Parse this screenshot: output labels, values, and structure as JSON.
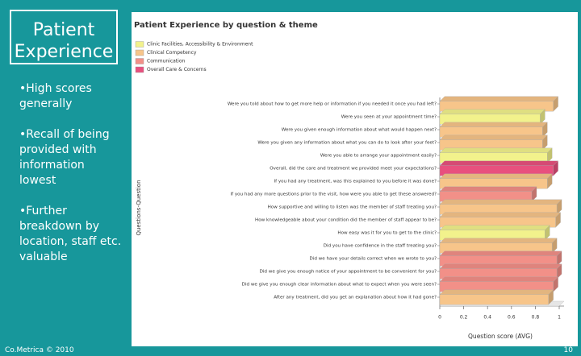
{
  "slide": {
    "title": "Patient Experience",
    "bullets": [
      "High scores generally",
      "Recall of being provided with information lowest",
      "Further breakdown by location, staff etc. valuable"
    ],
    "footer": "Co.Metrica © 2010",
    "page_number": "10"
  },
  "chart_data": {
    "type": "bar",
    "orientation": "horizontal",
    "title": "Patient Experience by question & theme",
    "x_label": "Question score (AVG)",
    "y_label": "Questions-Question",
    "categories": [
      "Were you told about how to get more help or information if you needed it once you had left?",
      "Were you seen at your appointment time?",
      "Were you given enough information about what would happen next?",
      "Were you given any information about what you can do to look after your feet?",
      "Were you able to arrange your appointment easily?",
      "Overall, did the care and treatment we provided meet your expectations?",
      "If you had any treatment, was this explained to you before it was done?",
      "If you had any more questions prior to the visit, how were you able to get these answered?",
      "How supportive and willing to listen was the member of staff treating you?",
      "How knowledgeable about your condition did the member of staff appear to be?",
      "How easy was it for you to get to the clinic?",
      "Did you have confidence in the staff treating you?",
      "Did we have your details correct when we wrote to you?",
      "Did we give you enough notice of your appointment to be convenient for you?",
      "Did we give you enough clear information about what to expect when you were seen?",
      "After any treatment, did you get an explanation about how it had gone?"
    ],
    "series": [
      {
        "name": "Clinic Facilities, Accessibility & Environment",
        "color": "#f2f28c",
        "values": [
          null,
          0.84,
          null,
          null,
          0.9,
          null,
          null,
          null,
          null,
          null,
          0.88,
          null,
          null,
          null,
          null,
          null
        ]
      },
      {
        "name": "Clinical Competency",
        "color": "#f7c58a",
        "values": [
          0.95,
          null,
          0.86,
          0.86,
          null,
          null,
          0.9,
          null,
          0.98,
          0.97,
          null,
          0.94,
          null,
          null,
          null,
          0.91
        ]
      },
      {
        "name": "Communication",
        "color": "#f29088",
        "values": [
          null,
          null,
          null,
          null,
          null,
          null,
          null,
          0.77,
          null,
          null,
          null,
          null,
          0.98,
          0.98,
          0.95,
          null
        ]
      },
      {
        "name": "Overall Care & Concerns",
        "color": "#e8507e",
        "values": [
          null,
          null,
          null,
          null,
          null,
          0.95,
          null,
          null,
          null,
          null,
          null,
          null,
          null,
          null,
          null,
          null
        ]
      }
    ],
    "xlim": [
      0,
      1
    ],
    "xticks": [
      0,
      0.2,
      0.4,
      0.6,
      0.8,
      1
    ]
  }
}
